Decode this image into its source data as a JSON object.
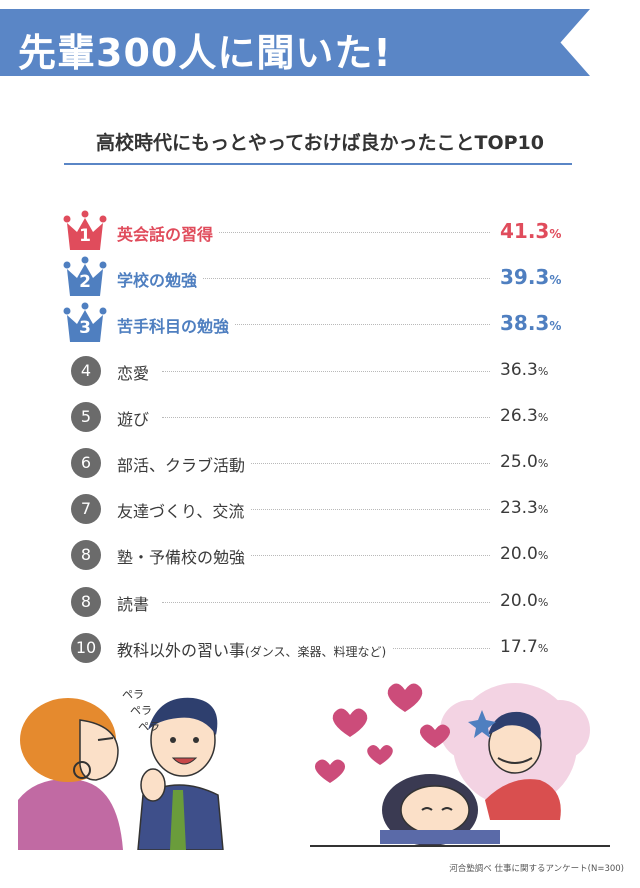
{
  "header": {
    "banner_title": "先輩300人に聞いた!",
    "subtitle": "高校時代にもっとやっておけば良かったことTOP10"
  },
  "colors": {
    "banner": "#5a86c6",
    "rank1": "#e04c5c",
    "rank2_3": "#4f7fc0",
    "badge": "#6b6b6b"
  },
  "chart_data": {
    "type": "table",
    "title": "高校時代にもっとやっておけば良かったことTOP10",
    "unit": "%",
    "rows": [
      {
        "rank": "1",
        "label": "英会話の習得",
        "value": 41.3,
        "value_text": "41.3"
      },
      {
        "rank": "2",
        "label": "学校の勉強",
        "value": 39.3,
        "value_text": "39.3"
      },
      {
        "rank": "3",
        "label": "苦手科目の勉強",
        "value": 38.3,
        "value_text": "38.3"
      },
      {
        "rank": "4",
        "label": "恋愛",
        "value": 36.3,
        "value_text": "36.3"
      },
      {
        "rank": "5",
        "label": "遊び",
        "value": 26.3,
        "value_text": "26.3"
      },
      {
        "rank": "6",
        "label": "部活、クラブ活動",
        "value": 25.0,
        "value_text": "25.0"
      },
      {
        "rank": "7",
        "label": "友達づくり、交流",
        "value": 23.3,
        "value_text": "23.3"
      },
      {
        "rank": "8",
        "label": "塾・予備校の勉強",
        "value": 20.0,
        "value_text": "20.0"
      },
      {
        "rank": "8",
        "label": "読書",
        "value": 20.0,
        "value_text": "20.0"
      },
      {
        "rank": "10",
        "label": "教科以外の習い事",
        "label_note": "(ダンス、楽器、料理など)",
        "value": 17.7,
        "value_text": "17.7"
      }
    ]
  },
  "illustration": {
    "speech_sfx": [
      "ペラ",
      "ペラ",
      "ペラ"
    ]
  },
  "footnote": "河合塾調べ 仕事に関するアンケート(N=300)"
}
